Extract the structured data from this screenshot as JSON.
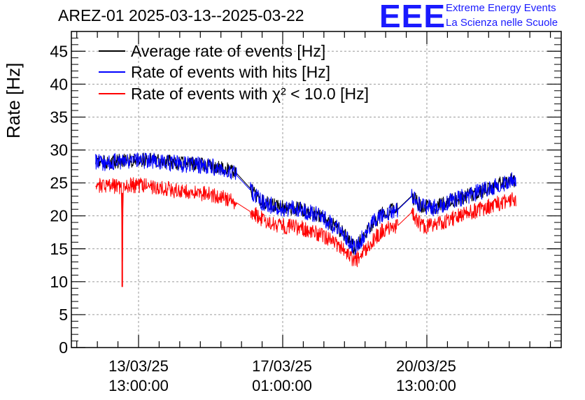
{
  "header": {
    "title": "AREZ-01 2025-03-13--2025-03-22",
    "logo_text": "EEE",
    "logo_line1": "Extreme Energy Events",
    "logo_line2": "La Scienza nelle Scuole"
  },
  "chart_data": {
    "type": "line",
    "ylabel": "Rate [Hz]",
    "ylim": [
      0,
      48
    ],
    "yticks": [
      "0",
      "5",
      "10",
      "15",
      "20",
      "25",
      "30",
      "35",
      "40",
      "45"
    ],
    "x_tick_labels": [
      {
        "date": "13/03/25",
        "time": "13:00:00"
      },
      {
        "date": "17/03/25",
        "time": "01:00:00"
      },
      {
        "date": "20/03/25",
        "time": "13:00:00"
      }
    ],
    "grid": true,
    "legend_position": "top-left",
    "series": [
      {
        "name": "Average rate of events [Hz]",
        "color": "#000000",
        "x": [
          "12/03/25 12:00",
          "12/03/25 18:00",
          "13/03/25 12:00",
          "14/03/25 00:00",
          "14/03/25 12:00",
          "15/03/25 00:00",
          "15/03/25 12:00",
          "15/03/25 22:00",
          "16/03/25 13:00",
          "17/03/25 00:00",
          "17/03/25 12:00",
          "18/03/25 00:00",
          "18/03/25 12:00",
          "18/03/25 19:00",
          "19/03/25 06:00",
          "19/03/25 12:00",
          "19/03/25 20:00",
          "20/03/25 04:00",
          "20/03/25 10:00",
          "20/03/25 18:00",
          "21/03/25 00:00",
          "21/03/25 12:00",
          "22/03/25 00:00",
          "22/03/25 12:00",
          "22/03/25 17:00"
        ],
        "values": [
          28.3,
          28.2,
          28.5,
          28.4,
          28.0,
          27.8,
          27.4,
          26.5,
          22.2,
          21.3,
          21.0,
          20.0,
          17.5,
          15.0,
          19.0,
          20.5,
          21.0,
          23.0,
          21.5,
          21.3,
          22.0,
          23.0,
          24.0,
          25.3,
          25.5
        ]
      },
      {
        "name": "Rate of events with hits [Hz]",
        "color": "#0000ff",
        "x": [
          "12/03/25 12:00",
          "12/03/25 18:00",
          "13/03/25 12:00",
          "14/03/25 00:00",
          "14/03/25 12:00",
          "15/03/25 00:00",
          "15/03/25 12:00",
          "15/03/25 22:00",
          "16/03/25 13:00",
          "17/03/25 00:00",
          "17/03/25 12:00",
          "18/03/25 00:00",
          "18/03/25 12:00",
          "18/03/25 19:00",
          "19/03/25 06:00",
          "19/03/25 12:00",
          "19/03/25 20:00",
          "20/03/25 04:00",
          "20/03/25 10:00",
          "20/03/25 18:00",
          "21/03/25 00:00",
          "21/03/25 12:00",
          "22/03/25 00:00",
          "22/03/25 12:00",
          "22/03/25 17:00"
        ],
        "values": [
          28.2,
          28.1,
          28.5,
          28.3,
          27.9,
          27.7,
          27.3,
          26.2,
          22.0,
          21.2,
          20.9,
          19.9,
          17.4,
          15.0,
          19.0,
          20.4,
          20.9,
          22.9,
          21.4,
          21.2,
          21.9,
          23.0,
          24.0,
          25.2,
          25.5
        ]
      },
      {
        "name": "Rate of events with χ² < 10.0 [Hz]",
        "color": "#ff0000",
        "x": [
          "12/03/25 12:00",
          "12/03/25 18:00",
          "13/03/25 03:00",
          "13/03/25 03:30",
          "13/03/25 04:00",
          "13/03/25 12:00",
          "14/03/25 00:00",
          "14/03/25 12:00",
          "15/03/25 00:00",
          "15/03/25 12:00",
          "15/03/25 22:00",
          "16/03/25 13:00",
          "17/03/25 00:00",
          "17/03/25 12:00",
          "18/03/25 00:00",
          "18/03/25 12:00",
          "18/03/25 19:00",
          "19/03/25 06:00",
          "19/03/25 12:00",
          "19/03/25 20:00",
          "20/03/25 04:00",
          "20/03/25 10:00",
          "20/03/25 18:00",
          "21/03/25 00:00",
          "21/03/25 12:00",
          "22/03/25 00:00",
          "22/03/25 12:00",
          "22/03/25 17:00"
        ],
        "values": [
          24.8,
          24.5,
          24.5,
          9.2,
          24.6,
          24.7,
          24.3,
          23.8,
          23.5,
          23.0,
          22.0,
          19.5,
          18.5,
          18.2,
          17.0,
          15.0,
          13.0,
          16.5,
          18.0,
          18.5,
          20.5,
          18.5,
          18.5,
          19.3,
          20.3,
          21.3,
          22.3,
          22.5
        ]
      }
    ]
  }
}
